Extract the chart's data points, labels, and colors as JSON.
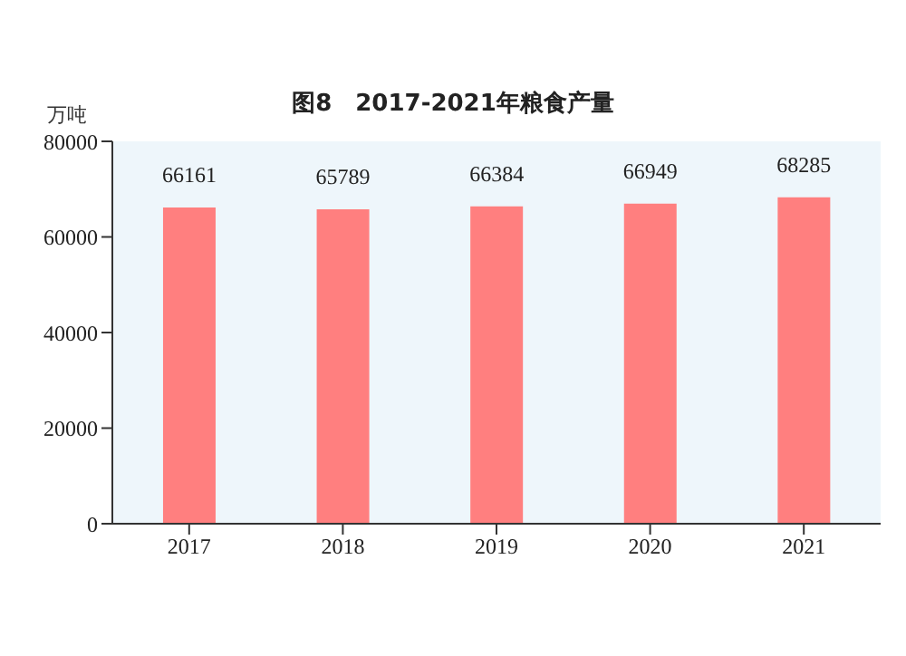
{
  "chart_data": {
    "type": "bar",
    "title": "图8　2017-2021年粮食产量",
    "ylabel": "万吨",
    "categories": [
      "2017",
      "2018",
      "2019",
      "2020",
      "2021"
    ],
    "values": [
      66161,
      65789,
      66384,
      66949,
      68285
    ],
    "color": "#ff7f7f",
    "ylim": [
      0,
      80000
    ],
    "yticks": [
      0,
      20000,
      40000,
      60000,
      80000
    ],
    "grid": false,
    "data_labels": true
  }
}
